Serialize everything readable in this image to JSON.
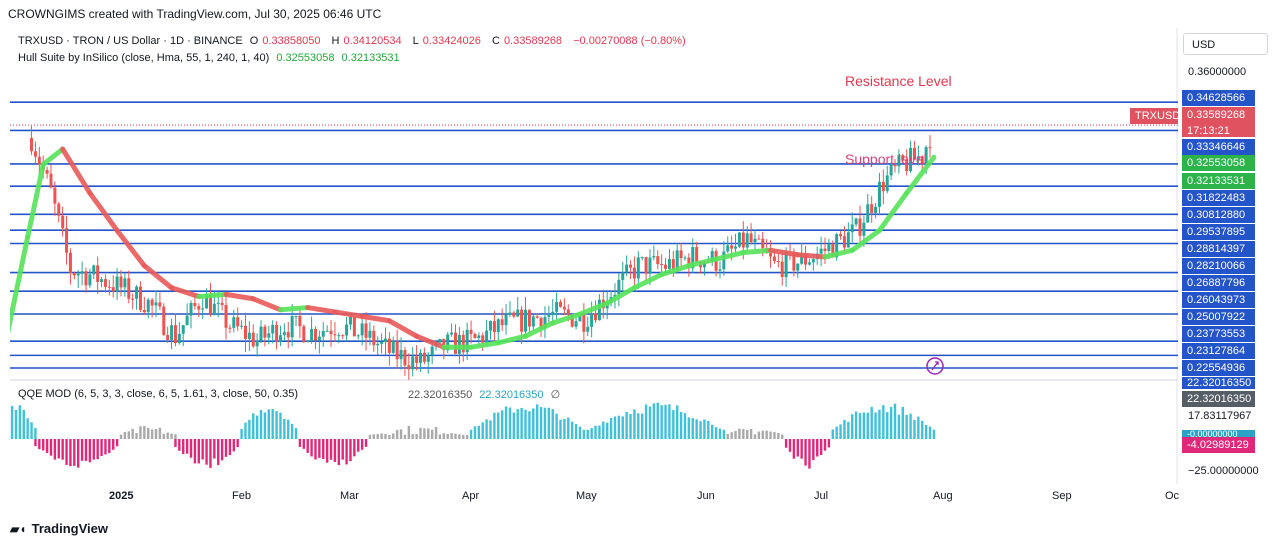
{
  "header": {
    "credit": "CROWNGIMS created with TradingView.com, Jul 30, 2025 06:46 UTC"
  },
  "symbol": {
    "name": "TRXUSD · TRON / US Dollar · 1D · BINANCE",
    "o_label": "O",
    "o": "0.33858050",
    "h_label": "H",
    "h": "0.34120534",
    "l_label": "L",
    "l": "0.33424026",
    "c_label": "C",
    "c": "0.33589268",
    "change": "−0.00270088 (−0.80%)"
  },
  "hull": {
    "label": "Hull Suite by InSilico (close, Hma, 55, 1, 240, 1, 40)",
    "v1": "0.32553058",
    "v2": "0.32133531"
  },
  "qqe": {
    "label": "QQE MOD (6, 5, 3, 3, close, 6, 5, 1.61, 3, close, 50, 0.35)",
    "v1": "22.32016350",
    "v2": "22.32016350",
    "null_sym": "∅"
  },
  "annotations": {
    "resistance": "Resistance Level",
    "support": "Support level"
  },
  "currency": "USD",
  "ticker_tag": "TRXUSD",
  "price_axis": {
    "top": "0.36000000",
    "current": "0.33589268",
    "countdown": "17:13:21",
    "levels": [
      "0.34628566",
      "0.33346646",
      "0.31822483",
      "0.30812880",
      "0.29537895",
      "0.28814397",
      "0.28210066",
      "0.26887796",
      "0.26043973",
      "0.25007922",
      "0.23773553",
      "0.23127864",
      "0.22554936"
    ],
    "hull1": "0.32553058",
    "hull2": "0.32133531"
  },
  "osc_axis": {
    "v_a": "22.32016350",
    "v_b": "22.32016350",
    "tick1": "17.83117967",
    "neg_hidden": "-0.00000000",
    "neg": "-4.02989129",
    "tick2": "−25.00000000"
  },
  "time_axis": [
    "2025",
    "Feb",
    "Mar",
    "Apr",
    "May",
    "Jun",
    "Jul",
    "Aug",
    "Sep",
    "Oc"
  ],
  "brand": "TradingView",
  "colors": {
    "up": "#26a69a",
    "down": "#ef5350",
    "level": "#2454c9",
    "hull_up": "#57e35a",
    "hull_down": "#e85a5a",
    "qqe_up": "#3fc1d9",
    "qqe_down": "#e0287a",
    "qqe_grey": "#a9a9a9"
  },
  "chart_data": {
    "type": "candlestick",
    "price_axis_ticks": [
      0.36,
      0.34628566,
      0.33589268,
      0.33346646,
      0.32553058,
      0.32133531,
      0.31822483,
      0.3081288,
      0.29537895,
      0.28814397,
      0.28210066,
      0.26887796,
      0.26043973,
      0.25007922,
      0.23773553,
      0.23127864,
      0.22554936
    ],
    "horizontal_levels": [
      0.34628566,
      0.33346646,
      0.31822483,
      0.3081288,
      0.29537895,
      0.28814397,
      0.28210066,
      0.26887796,
      0.26043973,
      0.25007922,
      0.23773553,
      0.23127864,
      0.22554936
    ],
    "close_path": [
      [
        "2024-12-09",
        0.33
      ],
      [
        "2024-12-14",
        0.305
      ],
      [
        "2024-12-19",
        0.27
      ],
      [
        "2024-12-24",
        0.268
      ],
      [
        "2025-01-01",
        0.262
      ],
      [
        "2025-01-08",
        0.255
      ],
      [
        "2025-01-15",
        0.24
      ],
      [
        "2025-01-22",
        0.258
      ],
      [
        "2025-01-29",
        0.245
      ],
      [
        "2025-02-05",
        0.238
      ],
      [
        "2025-02-12",
        0.245
      ],
      [
        "2025-02-19",
        0.242
      ],
      [
        "2025-02-26",
        0.245
      ],
      [
        "2025-03-05",
        0.24
      ],
      [
        "2025-03-12",
        0.232
      ],
      [
        "2025-03-19",
        0.228
      ],
      [
        "2025-03-26",
        0.236
      ],
      [
        "2025-04-02",
        0.238
      ],
      [
        "2025-04-09",
        0.245
      ],
      [
        "2025-04-16",
        0.248
      ],
      [
        "2025-04-23",
        0.25
      ],
      [
        "2025-04-30",
        0.248
      ],
      [
        "2025-05-07",
        0.26
      ],
      [
        "2025-05-14",
        0.272
      ],
      [
        "2025-05-21",
        0.272
      ],
      [
        "2025-05-28",
        0.276
      ],
      [
        "2025-06-04",
        0.274
      ],
      [
        "2025-06-11",
        0.284
      ],
      [
        "2025-06-18",
        0.272
      ],
      [
        "2025-06-25",
        0.274
      ],
      [
        "2025-07-02",
        0.28
      ],
      [
        "2025-07-09",
        0.288
      ],
      [
        "2025-07-16",
        0.31
      ],
      [
        "2025-07-21",
        0.318
      ],
      [
        "2025-07-26",
        0.322
      ],
      [
        "2025-07-29",
        0.3359
      ]
    ],
    "hull_suite": [
      [
        "2024-12-01",
        0.226
      ],
      [
        "2024-12-08",
        0.285
      ],
      [
        "2024-12-12",
        0.318
      ],
      [
        "2024-12-17",
        0.325
      ],
      [
        "2024-12-24",
        0.305
      ],
      [
        "2024-12-31",
        0.288
      ],
      [
        "2025-01-07",
        0.272
      ],
      [
        "2025-01-14",
        0.262
      ],
      [
        "2025-01-21",
        0.258
      ],
      [
        "2025-01-28",
        0.259
      ],
      [
        "2025-02-04",
        0.257
      ],
      [
        "2025-02-11",
        0.252
      ],
      [
        "2025-02-18",
        0.253
      ],
      [
        "2025-02-25",
        0.251
      ],
      [
        "2025-03-04",
        0.249
      ],
      [
        "2025-03-11",
        0.247
      ],
      [
        "2025-03-18",
        0.24
      ],
      [
        "2025-03-25",
        0.235
      ],
      [
        "2025-04-01",
        0.235
      ],
      [
        "2025-04-08",
        0.237
      ],
      [
        "2025-04-15",
        0.24
      ],
      [
        "2025-04-22",
        0.246
      ],
      [
        "2025-04-29",
        0.25
      ],
      [
        "2025-05-06",
        0.255
      ],
      [
        "2025-05-13",
        0.262
      ],
      [
        "2025-05-20",
        0.268
      ],
      [
        "2025-05-27",
        0.272
      ],
      [
        "2025-06-03",
        0.275
      ],
      [
        "2025-06-10",
        0.278
      ],
      [
        "2025-06-17",
        0.279
      ],
      [
        "2025-06-24",
        0.277
      ],
      [
        "2025-07-01",
        0.276
      ],
      [
        "2025-07-08",
        0.279
      ],
      [
        "2025-07-15",
        0.288
      ],
      [
        "2025-07-22",
        0.305
      ],
      [
        "2025-07-29",
        0.3213
      ]
    ],
    "qqe_histogram_sign_runs": [
      {
        "from": "2024-12-01",
        "to": "2024-12-10",
        "sign": "positive"
      },
      {
        "from": "2024-12-10",
        "to": "2024-12-31",
        "sign": "negative"
      },
      {
        "from": "2025-01-01",
        "to": "2025-01-15",
        "sign": "grey"
      },
      {
        "from": "2025-01-15",
        "to": "2025-01-31",
        "sign": "negative"
      },
      {
        "from": "2025-02-01",
        "to": "2025-02-15",
        "sign": "positive"
      },
      {
        "from": "2025-02-16",
        "to": "2025-03-05",
        "sign": "negative"
      },
      {
        "from": "2025-03-06",
        "to": "2025-03-31",
        "sign": "grey"
      },
      {
        "from": "2025-04-01",
        "to": "2025-04-30",
        "sign": "positive"
      },
      {
        "from": "2025-05-01",
        "to": "2025-06-05",
        "sign": "positive"
      },
      {
        "from": "2025-06-06",
        "to": "2025-06-20",
        "sign": "grey"
      },
      {
        "from": "2025-06-21",
        "to": "2025-07-02",
        "sign": "negative"
      },
      {
        "from": "2025-07-03",
        "to": "2025-07-29",
        "sign": "positive"
      }
    ],
    "osc_axis_ticks": [
      22.3201635,
      17.83117967,
      -4.02989129,
      -25
    ]
  }
}
